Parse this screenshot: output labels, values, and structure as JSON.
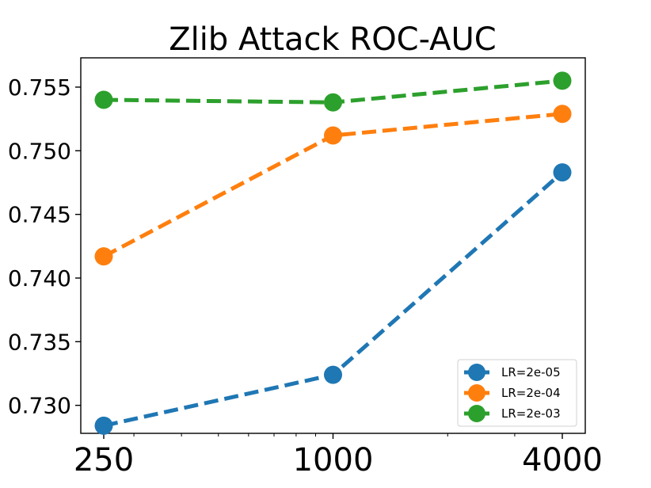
{
  "chart_data": {
    "type": "line",
    "title": "Zlib Attack ROC-AUC",
    "xlabel": "",
    "ylabel": "",
    "x_scale": "log2",
    "x": [
      250,
      1000,
      4000
    ],
    "x_tick_labels": [
      "250",
      "1000",
      "4000"
    ],
    "ylim": [
      0.7278,
      0.7573
    ],
    "y_ticks": [
      0.73,
      0.735,
      0.74,
      0.745,
      0.75,
      0.755
    ],
    "y_tick_labels": [
      "0.730",
      "0.735",
      "0.740",
      "0.745",
      "0.750",
      "0.755"
    ],
    "grid": false,
    "legend_position": "lower-right",
    "series": [
      {
        "name": "LR=2e-05",
        "color": "#1f77b4",
        "values": [
          0.7284,
          0.7324,
          0.7483
        ]
      },
      {
        "name": "LR=2e-04",
        "color": "#ff7f0e",
        "values": [
          0.7417,
          0.7512,
          0.7529
        ]
      },
      {
        "name": "LR=2e-03",
        "color": "#2ca02c",
        "values": [
          0.754,
          0.7538,
          0.7555
        ]
      }
    ]
  }
}
